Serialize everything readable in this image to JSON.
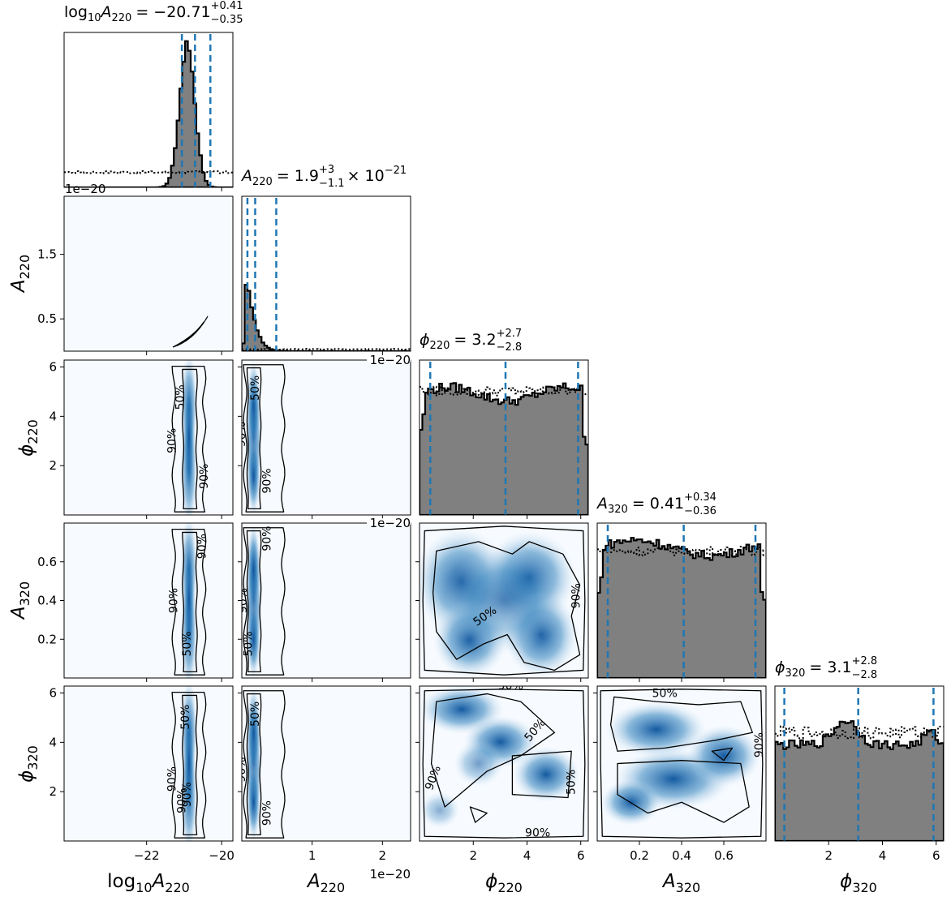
{
  "chart_data": {
    "type": "corner",
    "colors": {
      "density": "#08519c",
      "background": "#f7fbff",
      "hist_fill": "#808080",
      "quantile_line": "#1f77b4",
      "contour": "#000000"
    },
    "parameters": [
      {
        "key": "log10A220",
        "label_base": "log",
        "label_sub1": "10",
        "label_main": "A",
        "label_sub2": "220",
        "title_value": "= −20.71",
        "title_plus": "+0.41",
        "title_minus": "−0.35",
        "range": [
          -24.2,
          -19.7
        ],
        "ticks": [
          -22,
          -20
        ],
        "tick_labels": [
          "−22",
          "−20"
        ],
        "quantiles": [
          -21.06,
          -20.71,
          -20.3
        ]
      },
      {
        "key": "A220",
        "label_main": "A",
        "label_sub2": "220",
        "title_value": "= 1.9",
        "title_plus": "+3",
        "title_minus": "−1.1",
        "title_suffix": "× 10",
        "title_exp": "−21",
        "range": [
          0,
          2.4e-20
        ],
        "ticks": [
          1e-20,
          2e-20
        ],
        "tick_labels": [
          "1",
          "2"
        ],
        "offset_text": "1e−20",
        "quantiles": [
          8e-22,
          1.9e-21,
          4.9e-21
        ]
      },
      {
        "key": "phi220",
        "label_main": "ϕ",
        "label_sub2": "220",
        "title_value": "= 3.2",
        "title_plus": "+2.7",
        "title_minus": "−2.8",
        "range": [
          0,
          6.28
        ],
        "ticks": [
          2,
          4,
          6
        ],
        "tick_labels": [
          "2",
          "4",
          "6"
        ],
        "quantiles": [
          0.4,
          3.2,
          5.9
        ]
      },
      {
        "key": "A320",
        "label_main": "A",
        "label_sub2": "320",
        "title_value": "= 0.41",
        "title_plus": "+0.34",
        "title_minus": "−0.36",
        "range": [
          0,
          0.8
        ],
        "ticks": [
          0.2,
          0.4,
          0.6
        ],
        "tick_labels": [
          "0.2",
          "0.4",
          "0.6"
        ],
        "quantiles": [
          0.05,
          0.41,
          0.75
        ]
      },
      {
        "key": "phi320",
        "label_main": "ϕ",
        "label_sub2": "320",
        "title_value": "= 3.1",
        "title_plus": "+2.8",
        "title_minus": "−2.8",
        "range": [
          0,
          6.28
        ],
        "ticks": [
          2,
          4,
          6
        ],
        "tick_labels": [
          "2",
          "4",
          "6"
        ],
        "quantiles": [
          0.35,
          3.1,
          5.9
        ]
      }
    ],
    "y_axes": [
      {
        "row": 1,
        "ticks": [
          5e-21,
          1.5e-20
        ],
        "tick_labels": [
          "0.5",
          "1.5"
        ],
        "range": [
          0,
          2.4e-20
        ],
        "offset_text": "1e−20"
      },
      {
        "row": 2,
        "ticks": [
          2,
          4,
          6
        ],
        "tick_labels": [
          "2",
          "4",
          "6"
        ],
        "range": [
          0,
          6.28
        ]
      },
      {
        "row": 3,
        "ticks": [
          0.2,
          0.4,
          0.6
        ],
        "tick_labels": [
          "0.2",
          "0.4",
          "0.6"
        ],
        "range": [
          0,
          0.8
        ]
      },
      {
        "row": 4,
        "ticks": [
          2,
          4,
          6
        ],
        "tick_labels": [
          "2",
          "4",
          "6"
        ],
        "range": [
          0,
          6.28
        ]
      }
    ],
    "contour_levels": [
      "50%",
      "90%"
    ]
  }
}
